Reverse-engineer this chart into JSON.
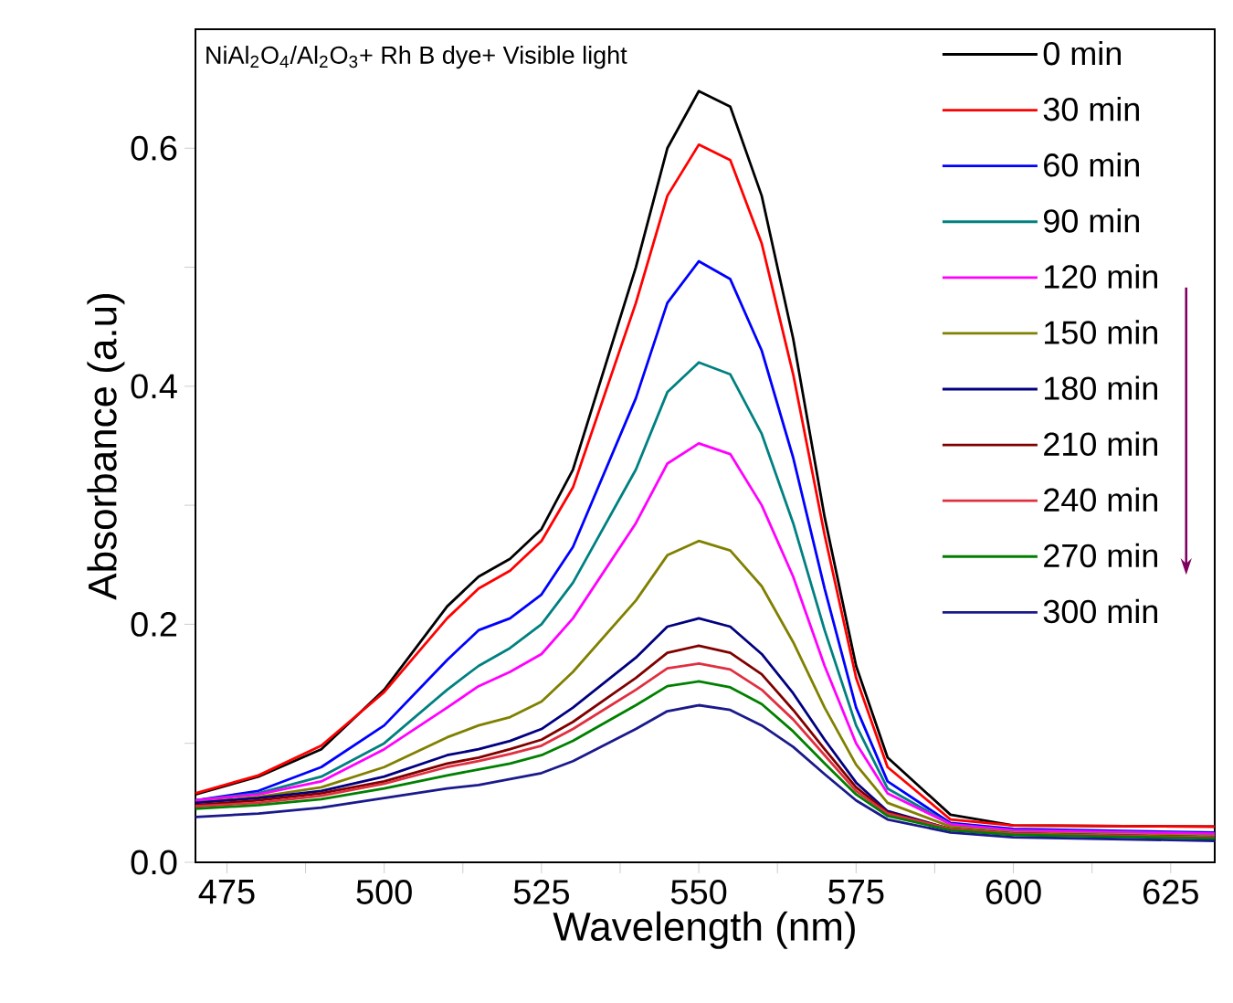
{
  "chart_data": {
    "type": "line",
    "xlabel": "Wavelength (nm)",
    "ylabel": "Absorbance (a.u)",
    "annotations": [
      "NiAl$_{2}$O$_{4}$/Al$_{2}$O$_{3}$+ Rh B dye+ Visible light"
    ],
    "x": [
      470,
      480,
      490,
      500,
      510,
      515,
      520,
      525,
      530,
      540,
      545,
      550,
      555,
      560,
      565,
      570,
      575,
      580,
      590,
      600,
      632
    ],
    "xlim": [
      470,
      632
    ],
    "ylim": [
      0,
      0.7
    ],
    "xticks": [
      475,
      {
        "value": 487.5,
        "label": null
      },
      500,
      {
        "value": 512.5,
        "label": null
      },
      525,
      {
        "value": 537.5,
        "label": null
      },
      550,
      {
        "value": 562.5,
        "label": null
      },
      575,
      {
        "value": 587.5,
        "label": null
      },
      600,
      {
        "value": 612.5,
        "label": null
      },
      625
    ],
    "yticks": [
      {
        "value": 0,
        "label": "0.0"
      },
      {
        "value": 0.1,
        "label": null
      },
      0.2,
      {
        "value": 0.3,
        "label": null
      },
      0.4,
      {
        "value": 0.5,
        "label": null
      },
      0.6
    ],
    "legend": "top right",
    "series": [
      {
        "name": "0 min",
        "color": "#000000",
        "values": [
          0.057,
          0.072,
          0.095,
          0.145,
          0.215,
          0.24,
          0.255,
          0.28,
          0.33,
          0.5,
          0.6,
          0.648,
          0.635,
          0.56,
          0.44,
          0.29,
          0.165,
          0.088,
          0.04,
          0.031,
          0.03
        ]
      },
      {
        "name": "30 min",
        "color": "#ff0000",
        "values": [
          0.058,
          0.073,
          0.098,
          0.143,
          0.205,
          0.23,
          0.245,
          0.27,
          0.315,
          0.47,
          0.56,
          0.603,
          0.59,
          0.52,
          0.41,
          0.275,
          0.155,
          0.08,
          0.036,
          0.031,
          0.03
        ]
      },
      {
        "name": "60 min",
        "color": "#0000ff",
        "values": [
          0.052,
          0.06,
          0.08,
          0.115,
          0.17,
          0.195,
          0.205,
          0.225,
          0.265,
          0.39,
          0.47,
          0.505,
          0.49,
          0.43,
          0.34,
          0.23,
          0.13,
          0.068,
          0.033,
          0.028,
          0.025
        ]
      },
      {
        "name": "90 min",
        "color": "#008080",
        "values": [
          0.052,
          0.058,
          0.072,
          0.1,
          0.145,
          0.165,
          0.18,
          0.2,
          0.235,
          0.33,
          0.395,
          0.42,
          0.41,
          0.36,
          0.285,
          0.195,
          0.115,
          0.062,
          0.032,
          0.027,
          0.024
        ]
      },
      {
        "name": "120 min",
        "color": "#ff00ff",
        "values": [
          0.052,
          0.057,
          0.068,
          0.095,
          0.13,
          0.148,
          0.16,
          0.175,
          0.205,
          0.285,
          0.335,
          0.352,
          0.343,
          0.3,
          0.24,
          0.165,
          0.1,
          0.058,
          0.032,
          0.027,
          0.024
        ]
      },
      {
        "name": "150 min",
        "color": "#808000",
        "values": [
          0.05,
          0.055,
          0.063,
          0.08,
          0.105,
          0.115,
          0.122,
          0.135,
          0.16,
          0.22,
          0.258,
          0.27,
          0.262,
          0.232,
          0.185,
          0.13,
          0.082,
          0.05,
          0.03,
          0.025,
          0.022
        ]
      },
      {
        "name": "180 min",
        "color": "#000080",
        "values": [
          0.05,
          0.054,
          0.06,
          0.072,
          0.09,
          0.095,
          0.102,
          0.112,
          0.13,
          0.172,
          0.198,
          0.205,
          0.198,
          0.175,
          0.142,
          0.103,
          0.067,
          0.043,
          0.028,
          0.024,
          0.021
        ]
      },
      {
        "name": "210 min",
        "color": "#800000",
        "values": [
          0.048,
          0.052,
          0.058,
          0.068,
          0.083,
          0.088,
          0.095,
          0.103,
          0.118,
          0.155,
          0.176,
          0.182,
          0.176,
          0.158,
          0.128,
          0.095,
          0.063,
          0.042,
          0.028,
          0.024,
          0.021
        ]
      },
      {
        "name": "240 min",
        "color": "#e03040",
        "values": [
          0.047,
          0.05,
          0.056,
          0.066,
          0.08,
          0.085,
          0.091,
          0.098,
          0.112,
          0.145,
          0.163,
          0.167,
          0.162,
          0.145,
          0.12,
          0.09,
          0.06,
          0.041,
          0.028,
          0.024,
          0.021
        ]
      },
      {
        "name": "270 min",
        "color": "#008000",
        "values": [
          0.045,
          0.048,
          0.053,
          0.062,
          0.073,
          0.078,
          0.083,
          0.09,
          0.102,
          0.132,
          0.148,
          0.152,
          0.147,
          0.133,
          0.11,
          0.083,
          0.057,
          0.039,
          0.027,
          0.023,
          0.02
        ]
      },
      {
        "name": "300 min",
        "color": "#1a1a8c",
        "values": [
          0.038,
          0.041,
          0.046,
          0.054,
          0.062,
          0.065,
          0.07,
          0.075,
          0.085,
          0.112,
          0.127,
          0.132,
          0.128,
          0.115,
          0.097,
          0.074,
          0.052,
          0.036,
          0.025,
          0.021,
          0.018
        ]
      }
    ]
  }
}
